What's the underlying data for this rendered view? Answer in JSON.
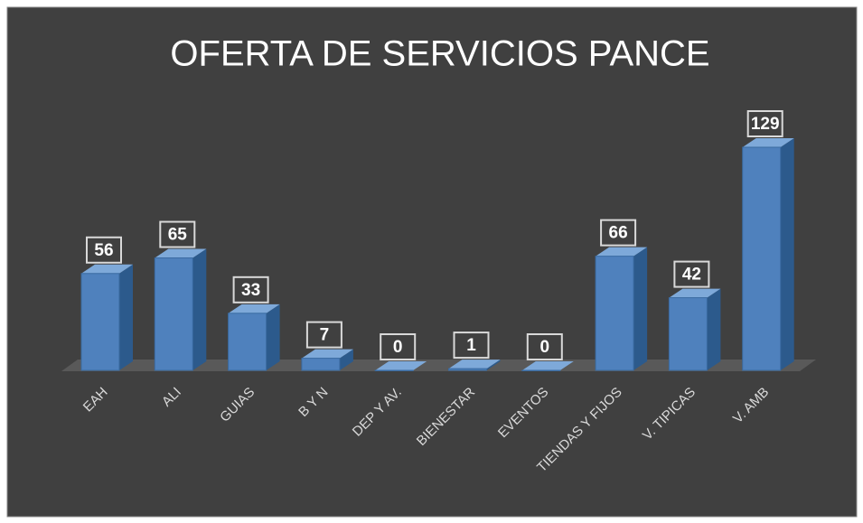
{
  "chart_data": {
    "type": "bar",
    "title": "OFERTA DE SERVICIOS PANCE",
    "categories": [
      "EAH",
      "ALI",
      "GUIAS",
      "B Y N",
      "DEP Y AV.",
      "BIENESTAR",
      "EVENTOS",
      "TIENDAS Y FIJOS",
      "V. TIPICAS",
      "V. AMB"
    ],
    "values": [
      56,
      65,
      33,
      7,
      0,
      1,
      0,
      66,
      42,
      129
    ],
    "color": "#4f81bd"
  }
}
